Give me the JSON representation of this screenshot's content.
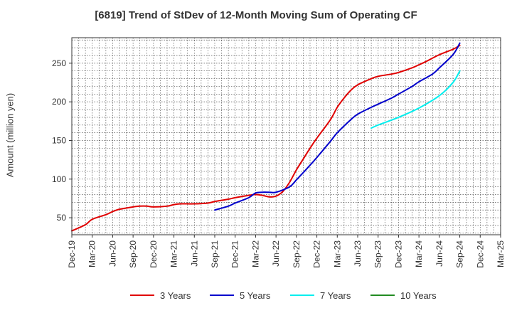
{
  "chart_data": {
    "type": "line",
    "title": "[6819]  Trend of StDev of 12-Month Moving Sum of Operating CF",
    "xlabel": "",
    "ylabel": "Amount (million yen)",
    "x_ticks": [
      "Dec-19",
      "Mar-20",
      "Jun-20",
      "Sep-20",
      "Dec-20",
      "Mar-21",
      "Jun-21",
      "Sep-21",
      "Dec-21",
      "Mar-22",
      "Jun-22",
      "Sep-22",
      "Dec-22",
      "Mar-23",
      "Jun-23",
      "Sep-23",
      "Dec-23",
      "Mar-24",
      "Jun-24",
      "Sep-24",
      "Dec-24",
      "Mar-25"
    ],
    "y_ticks": [
      50,
      100,
      150,
      200,
      250
    ],
    "ylim": [
      28,
      283
    ],
    "grid": true,
    "legend_position": "bottom",
    "series": [
      {
        "name": "3 Years",
        "color": "#e00000",
        "points": [
          [
            "Dec-19",
            33
          ],
          [
            "Feb-20",
            41
          ],
          [
            "Mar-20",
            48
          ],
          [
            "May-20",
            54
          ],
          [
            "Jun-20",
            58
          ],
          [
            "Jul-20",
            61
          ],
          [
            "Sep-20",
            64
          ],
          [
            "Oct-20",
            65
          ],
          [
            "Nov-20",
            65
          ],
          [
            "Dec-20",
            64
          ],
          [
            "Feb-21",
            65
          ],
          [
            "Mar-21",
            67
          ],
          [
            "Apr-21",
            68
          ],
          [
            "May-21",
            68
          ],
          [
            "Jun-21",
            68
          ],
          [
            "Aug-21",
            69
          ],
          [
            "Sep-21",
            71
          ],
          [
            "Nov-21",
            74
          ],
          [
            "Dec-21",
            76
          ],
          [
            "Feb-22",
            79
          ],
          [
            "Mar-22",
            80
          ],
          [
            "Apr-22",
            79
          ],
          [
            "May-22",
            77
          ],
          [
            "Jun-22",
            78
          ],
          [
            "Jul-22",
            84
          ],
          [
            "Aug-22",
            96
          ],
          [
            "Sep-22",
            112
          ],
          [
            "Oct-22",
            126
          ],
          [
            "Nov-22",
            140
          ],
          [
            "Dec-22",
            153
          ],
          [
            "Feb-23",
            177
          ],
          [
            "Mar-23",
            193
          ],
          [
            "Apr-23",
            205
          ],
          [
            "May-23",
            215
          ],
          [
            "Jun-23",
            222
          ],
          [
            "Aug-23",
            230
          ],
          [
            "Sep-23",
            233
          ],
          [
            "Nov-23",
            236
          ],
          [
            "Dec-23",
            238
          ],
          [
            "Feb-24",
            244
          ],
          [
            "Mar-24",
            248
          ],
          [
            "Apr-24",
            252
          ],
          [
            "Jun-24",
            261
          ],
          [
            "Aug-24",
            268
          ],
          [
            "Sep-24",
            273
          ]
        ]
      },
      {
        "name": "5 Years",
        "color": "#0000cc",
        "points": [
          [
            "Sep-21",
            60
          ],
          [
            "Nov-21",
            65
          ],
          [
            "Dec-21",
            69
          ],
          [
            "Feb-22",
            76
          ],
          [
            "Mar-22",
            82
          ],
          [
            "Apr-22",
            83
          ],
          [
            "May-22",
            83
          ],
          [
            "Jun-22",
            83
          ],
          [
            "Aug-22",
            90
          ],
          [
            "Sep-22",
            99
          ],
          [
            "Nov-22",
            118
          ],
          [
            "Dec-22",
            128
          ],
          [
            "Feb-23",
            149
          ],
          [
            "Mar-23",
            160
          ],
          [
            "May-23",
            177
          ],
          [
            "Jun-23",
            184
          ],
          [
            "Aug-23",
            193
          ],
          [
            "Sep-23",
            197
          ],
          [
            "Nov-23",
            205
          ],
          [
            "Dec-23",
            210
          ],
          [
            "Feb-24",
            220
          ],
          [
            "Mar-24",
            226
          ],
          [
            "May-24",
            236
          ],
          [
            "Jun-24",
            244
          ],
          [
            "Aug-24",
            261
          ],
          [
            "Sep-24",
            276
          ]
        ]
      },
      {
        "name": "7 Years",
        "color": "#00eeee",
        "points": [
          [
            "Aug-23",
            166
          ],
          [
            "Sep-23",
            170
          ],
          [
            "Dec-23",
            180
          ],
          [
            "Mar-24",
            192
          ],
          [
            "Jun-24",
            208
          ],
          [
            "Aug-24",
            225
          ],
          [
            "Sep-24",
            240
          ]
        ]
      },
      {
        "name": "10 Years",
        "color": "#228b22",
        "points": []
      }
    ]
  }
}
